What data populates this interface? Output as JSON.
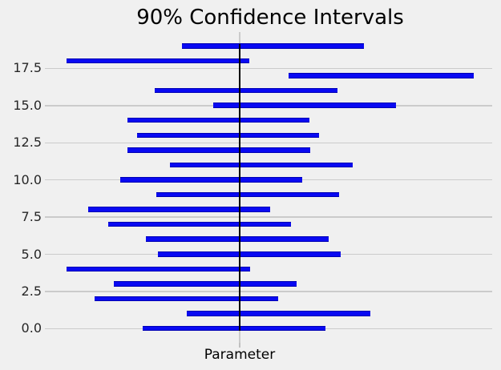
{
  "title": "90% Confidence Intervals",
  "x_axis_label": "Parameter",
  "colors": {
    "background": "#f0f0f0",
    "gridline": "#cbcbcb",
    "interval_bar": "#0909f2",
    "truth_line": "#000000",
    "tick_text": "#262626",
    "title_text": "#000000"
  },
  "chart_data": {
    "type": "bar",
    "variant": "horizontal_confidence_intervals",
    "title": "90% Confidence Intervals",
    "xlabel": "Parameter",
    "ylabel": "",
    "grid": "horizontal_on",
    "legend": null,
    "ylim": [
      -0.95,
      19.95
    ],
    "yticks": [
      {
        "value": 0,
        "label": "0.0"
      },
      {
        "value": 2.5,
        "label": "2.5"
      },
      {
        "value": 5,
        "label": "5.0"
      },
      {
        "value": 7.5,
        "label": "7.5"
      },
      {
        "value": 10,
        "label": "10.0"
      },
      {
        "value": 12.5,
        "label": "12.5"
      },
      {
        "value": 15,
        "label": "15.0"
      },
      {
        "value": 17.5,
        "label": "17.5"
      }
    ],
    "x_axis": {
      "tick_labels_visible": false,
      "units": "fraction_of_axis_width_0_to_1",
      "single_tick_at_truth": true
    },
    "truth_line": {
      "x": 0.4327,
      "y_from": 0,
      "y_to": 19
    },
    "intervals": [
      {
        "y": 0,
        "left": 0.2136,
        "right": 0.6248
      },
      {
        "y": 1,
        "left": 0.3143,
        "right": 0.7263
      },
      {
        "y": 2,
        "left": 0.1062,
        "right": 0.5181
      },
      {
        "y": 3,
        "left": 0.1487,
        "right": 0.5599
      },
      {
        "y": 4,
        "left": 0.0428,
        "right": 0.4554
      },
      {
        "y": 5,
        "left": 0.2495,
        "right": 0.66
      },
      {
        "y": 6,
        "left": 0.2215,
        "right": 0.632
      },
      {
        "y": 7,
        "left": 0.1364,
        "right": 0.5469
      },
      {
        "y": 8,
        "left": 0.0911,
        "right": 0.5001
      },
      {
        "y": 9,
        "left": 0.2444,
        "right": 0.6551
      },
      {
        "y": 10,
        "left": 0.1639,
        "right": 0.5722
      },
      {
        "y": 11,
        "left": 0.2748,
        "right": 0.6858
      },
      {
        "y": 12,
        "left": 0.181,
        "right": 0.5917
      },
      {
        "y": 13,
        "left": 0.2013,
        "right": 0.6117
      },
      {
        "y": 14,
        "left": 0.1796,
        "right": 0.5888
      },
      {
        "y": 15,
        "left": 0.3727,
        "right": 0.7841
      },
      {
        "y": 16,
        "left": 0.2423,
        "right": 0.6527
      },
      {
        "y": 17,
        "left": 0.5432,
        "right": 0.9579
      },
      {
        "y": 18,
        "left": 0.0428,
        "right": 0.4533
      },
      {
        "y": 19,
        "left": 0.3021,
        "right": 0.7126
      }
    ]
  }
}
